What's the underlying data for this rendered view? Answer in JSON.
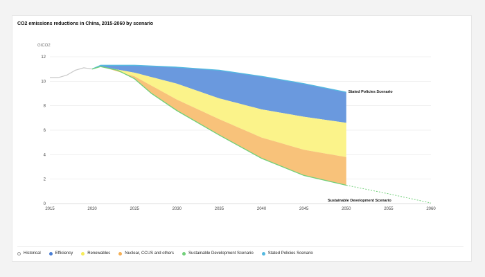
{
  "chart_data": {
    "type": "area",
    "title": "CO2 emissions reductions in China, 2015-2060 by scenario",
    "ylabel": "GtCO2",
    "xlim": [
      2015,
      2060
    ],
    "ylim": [
      0,
      12
    ],
    "xticks": [
      2015,
      2020,
      2025,
      2030,
      2035,
      2040,
      2045,
      2050,
      2055,
      2060
    ],
    "yticks": [
      0,
      2,
      4,
      6,
      8,
      10,
      12
    ],
    "grid": true,
    "legend_position": "bottom",
    "historical": {
      "name": "Historical",
      "x": [
        2015,
        2016,
        2017,
        2018,
        2019,
        2020
      ],
      "y": [
        10.3,
        10.3,
        10.5,
        10.9,
        11.1,
        11.0
      ]
    },
    "sps_line": {
      "name": "Stated Policies Scenario",
      "x": [
        2020,
        2021,
        2025,
        2030,
        2035,
        2040,
        2045,
        2050
      ],
      "y": [
        11.0,
        11.3,
        11.3,
        11.15,
        10.9,
        10.4,
        9.8,
        9.1
      ]
    },
    "sds_line": {
      "name": "Sustainable Development Scenario",
      "x": [
        2020,
        2021,
        2023,
        2025,
        2027,
        2030,
        2035,
        2040,
        2045,
        2050
      ],
      "y": [
        11.0,
        11.2,
        10.9,
        10.2,
        9.0,
        7.6,
        5.6,
        3.7,
        2.3,
        1.5
      ]
    },
    "sds_extension": {
      "x": [
        2050,
        2055,
        2060
      ],
      "y": [
        1.5,
        0.8,
        0.05
      ]
    },
    "bands": [
      {
        "name": "Efficiency",
        "x": [
          2021,
          2025,
          2030,
          2035,
          2040,
          2045,
          2050
        ],
        "y": [
          11.2,
          10.7,
          9.8,
          8.6,
          7.7,
          7.1,
          6.6
        ]
      },
      {
        "name": "Renewables",
        "x": [
          2021,
          2025,
          2030,
          2035,
          2040,
          2045,
          2050
        ],
        "y": [
          11.2,
          10.4,
          8.5,
          6.9,
          5.4,
          4.4,
          3.8
        ]
      }
    ],
    "annotations": {
      "sps": "Stated Policies Scenario",
      "sds": "Sustainable Development Scenario"
    }
  },
  "legend": [
    {
      "label": "Historical",
      "color": "#ffffff",
      "border": "#999999"
    },
    {
      "label": "Efficiency",
      "color": "#4a7fd4",
      "border": "#4a7fd4"
    },
    {
      "label": "Renewables",
      "color": "#f7ec5a",
      "border": "#f7ec5a"
    },
    {
      "label": "Nuclear, CCUS and others",
      "color": "#f5b057",
      "border": "#f5b057"
    },
    {
      "label": "Sustainable Development Scenario",
      "color": "#72d07a",
      "border": "#72d07a"
    },
    {
      "label": "Stated Policies Scenario",
      "color": "#54b9e0",
      "border": "#54b9e0"
    }
  ],
  "colors": {
    "efficiency": "#6a99de",
    "renewables": "#fbf38a",
    "nuclear": "#f8c27a",
    "sds": "#72d07a",
    "sps": "#54b9e0",
    "historical": "#c8c8c8",
    "grid": "#e6e6e6"
  }
}
